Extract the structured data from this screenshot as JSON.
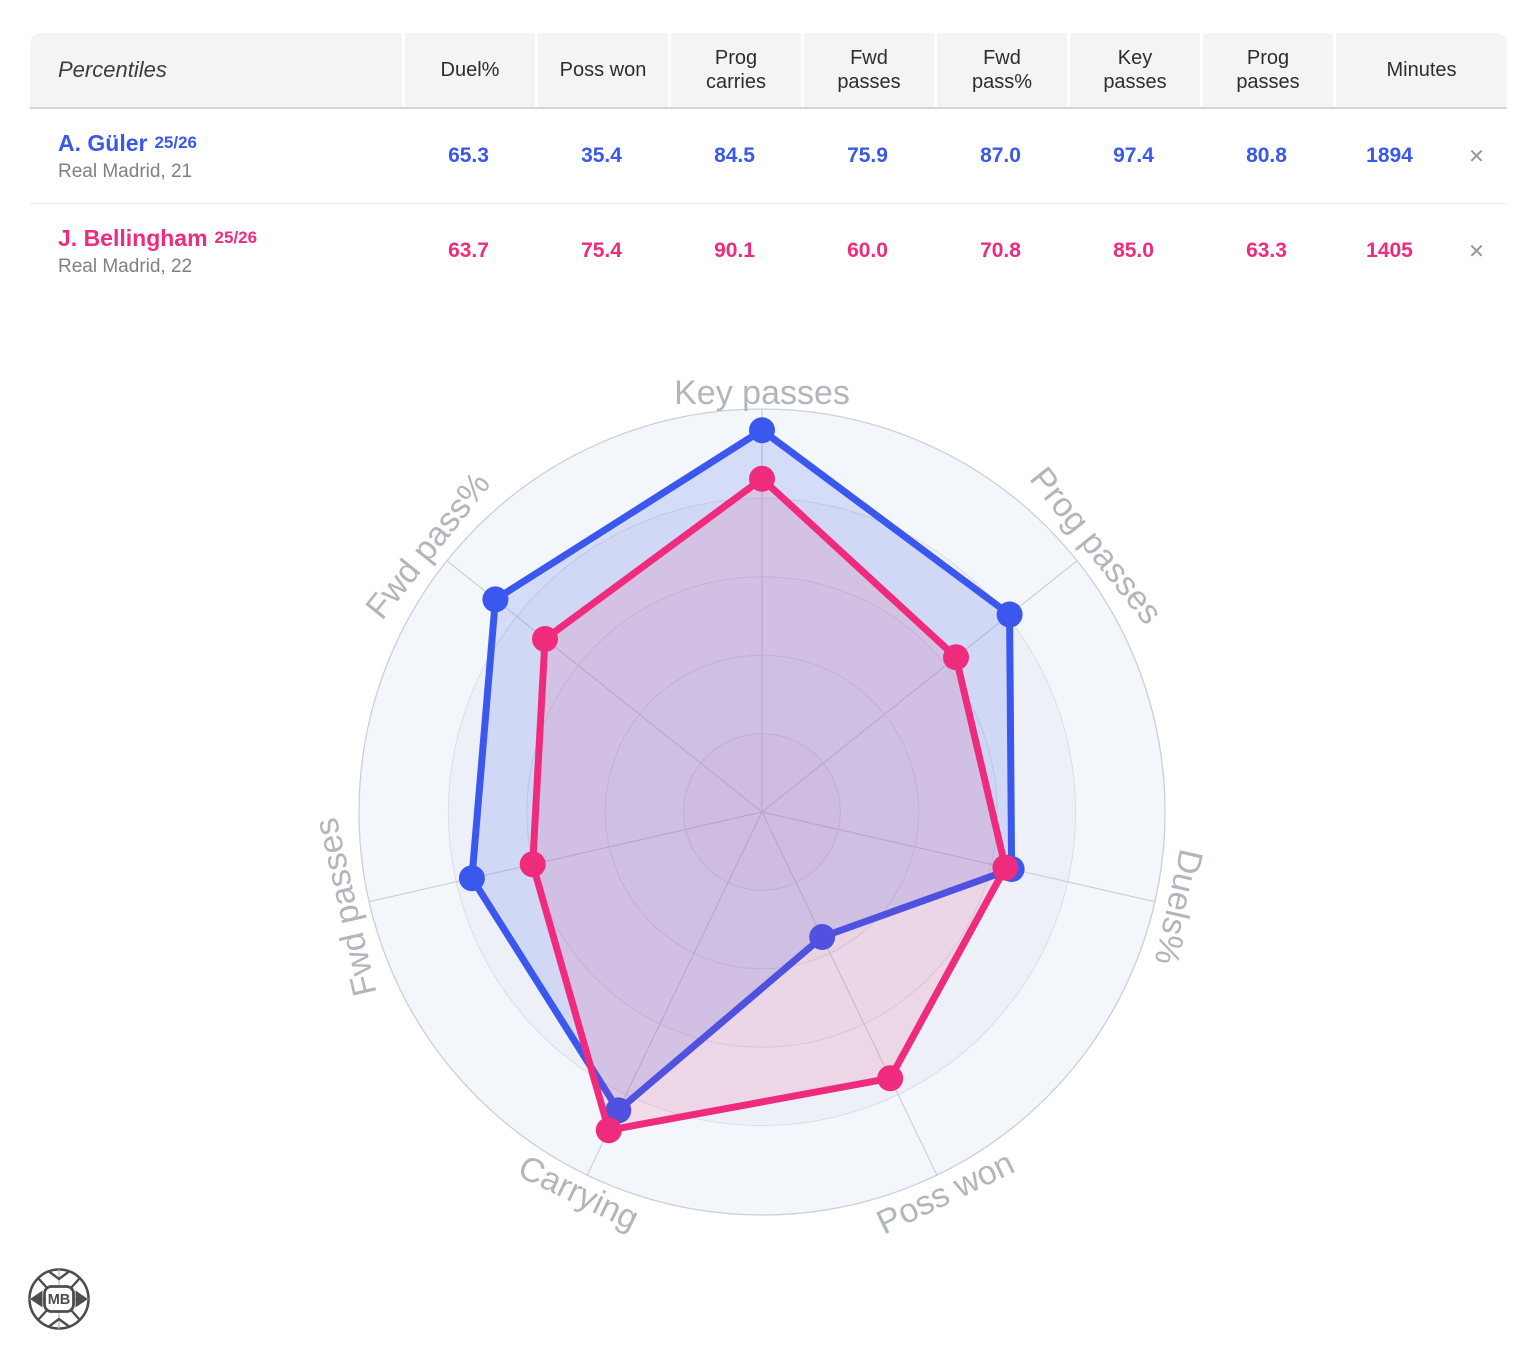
{
  "table": {
    "corner_label": "Percentiles",
    "columns": [
      "Duel%",
      "Poss won",
      "Prog carries",
      "Fwd passes",
      "Fwd pass%",
      "Key passes",
      "Prog passes",
      "Minutes"
    ],
    "rows": [
      {
        "name": "A. Güler",
        "season": "25/26",
        "subtitle": "Real Madrid, 21",
        "color": "#3a57ee",
        "values": [
          "65.3",
          "35.4",
          "84.5",
          "75.9",
          "87.0",
          "97.4",
          "80.8",
          "1894"
        ],
        "remove_label": "✕"
      },
      {
        "name": "J. Bellingham",
        "season": "25/26",
        "subtitle": "Real Madrid, 22",
        "color": "#ef2b7d",
        "values": [
          "63.7",
          "75.4",
          "90.1",
          "60.0",
          "70.8",
          "85.0",
          "63.3",
          "1405"
        ],
        "remove_label": "✕"
      }
    ]
  },
  "chart_data": {
    "type": "radar",
    "categories": [
      "Key passes",
      "Prog passes",
      "Duels%",
      "Poss won",
      "Carrying",
      "Fwd passes",
      "Fwd pass%"
    ],
    "series": [
      {
        "name": "A. Güler",
        "color": "#3a57ee",
        "fill_opacity": 0.16,
        "values": [
          97.4,
          80.8,
          65.3,
          35.4,
          84.5,
          75.9,
          87.0
        ]
      },
      {
        "name": "J. Bellingham",
        "color": "#ef2b7d",
        "fill_opacity": 0.13,
        "values": [
          85.0,
          63.3,
          63.7,
          75.4,
          90.1,
          60.0,
          70.8
        ]
      }
    ],
    "rmax": 100,
    "grid": {
      "rings": 5,
      "spokes": 7,
      "visible": true
    },
    "ring_fills": [
      "#f3f6fa",
      "#edf1f7",
      "#eaeff6",
      "#e8edf4",
      "#e5eaf2"
    ],
    "outer_ring_stroke": "#cbd0d6",
    "inner_ring_stroke": "rgba(165,172,183,0.3)",
    "spoke_color": "#c6cad1",
    "axis_label_color": "#b2b6bc",
    "legend": "none"
  },
  "logo": {
    "text": "MB"
  }
}
